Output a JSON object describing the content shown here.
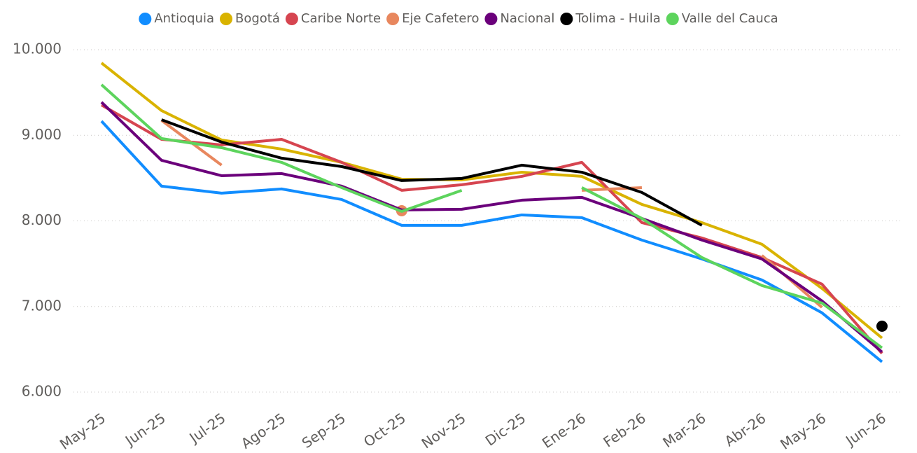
{
  "chart_data": {
    "type": "line",
    "categories": [
      "May-25",
      "Jun-25",
      "Jul-25",
      "Ago-25",
      "Sep-25",
      "Oct-25",
      "Nov-25",
      "Dic-25",
      "Ene-26",
      "Feb-26",
      "Mar-26",
      "Abr-26",
      "May-26",
      "Jun-26"
    ],
    "ylim": [
      6000,
      10000
    ],
    "yticks": [
      {
        "value": 6000,
        "label": "6.000"
      },
      {
        "value": 7000,
        "label": "7.000"
      },
      {
        "value": 8000,
        "label": "8.000"
      },
      {
        "value": 9000,
        "label": "9.000"
      },
      {
        "value": 10000,
        "label": "10.000"
      }
    ],
    "grid": true,
    "legend": "top",
    "series": [
      {
        "name": "Antioquia",
        "color": "#118DFF",
        "values": [
          9166,
          8406,
          8324,
          8373,
          8250,
          7948,
          7948,
          8070,
          8038,
          7776,
          7555,
          7310,
          6926,
          6353
        ]
      },
      {
        "name": "Bogotá",
        "color": "#D9B300",
        "values": [
          9845,
          9289,
          8945,
          8839,
          8684,
          8487,
          8479,
          8569,
          8520,
          8193,
          7980,
          7727,
          7212,
          6632
        ]
      },
      {
        "name": "Caribe Norte",
        "color": "#D64550",
        "values": [
          9354,
          8953,
          8888,
          8953,
          8684,
          8357,
          8422,
          8520,
          8684,
          7980,
          7800,
          7572,
          7261,
          6451
        ]
      },
      {
        "name": "Eje Cafetero",
        "color": "#E8875E",
        "values": [
          null,
          9174,
          8651,
          null,
          null,
          8119,
          null,
          null,
          8357,
          8389,
          null,
          7596,
          6990,
          null
        ]
      },
      {
        "name": "Nacional",
        "color": "#6B007B",
        "values": [
          9387,
          8708,
          8528,
          8553,
          8406,
          8128,
          8136,
          8242,
          8275,
          8029,
          7776,
          7555,
          7065,
          6468
        ]
      },
      {
        "name": "Tolima - Huila",
        "color": "#000000",
        "values": [
          null,
          9182,
          8921,
          8733,
          8635,
          8471,
          8496,
          8651,
          8569,
          8332,
          7948,
          null,
          null,
          6770
        ]
      },
      {
        "name": "Valle del Cauca",
        "color": "#5DD45D",
        "values": [
          9591,
          8962,
          8855,
          8684,
          8389,
          8111,
          8357,
          null,
          8389,
          8029,
          7572,
          7245,
          7040,
          6517
        ]
      }
    ]
  }
}
